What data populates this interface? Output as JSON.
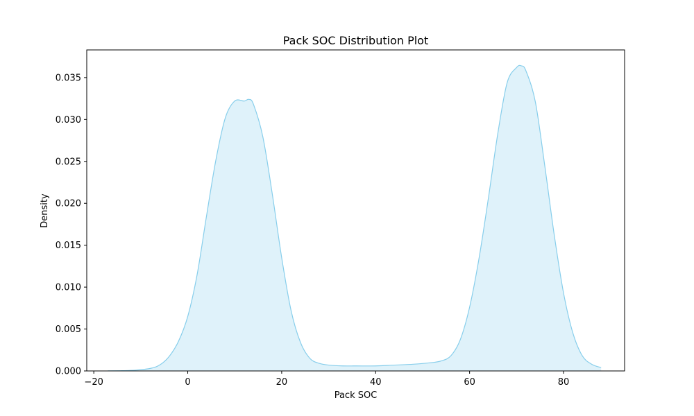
{
  "chart_data": {
    "type": "area",
    "title": "Pack SOC Distribution Plot",
    "xlabel": "Pack SOC",
    "ylabel": "Density",
    "xlim": [
      -21.5,
      93.0
    ],
    "ylim": [
      0.0,
      0.0383
    ],
    "x_ticks": [
      -20,
      0,
      20,
      40,
      60,
      80
    ],
    "y_ticks": [
      0.0,
      0.005,
      0.01,
      0.015,
      0.02,
      0.025,
      0.03,
      0.035
    ],
    "x_tick_labels": [
      "−20",
      "0",
      "20",
      "40",
      "60",
      "80"
    ],
    "y_tick_labels": [
      "0.000",
      "0.005",
      "0.010",
      "0.015",
      "0.020",
      "0.025",
      "0.030",
      "0.035"
    ],
    "grid": false,
    "series": [
      {
        "color": "#87ceeb",
        "fill_color": "#87ceeb",
        "fill_opacity": 0.27,
        "x": [
          -17,
          -14,
          -11,
          -8,
          -6,
          -4,
          -2,
          0,
          2,
          4,
          6,
          8,
          10,
          12,
          13,
          14,
          16,
          18,
          20,
          22,
          24,
          26,
          28,
          30,
          33,
          36,
          40,
          44,
          48,
          52,
          54,
          56,
          58,
          60,
          62,
          64,
          66,
          68,
          70,
          71,
          72,
          74,
          76,
          78,
          80,
          82,
          84,
          86,
          88
        ],
        "y": [
          1e-05,
          3e-05,
          0.0001,
          0.0003,
          0.0007,
          0.0017,
          0.0035,
          0.0065,
          0.0115,
          0.0185,
          0.0252,
          0.0302,
          0.0322,
          0.0322,
          0.0324,
          0.0318,
          0.0279,
          0.0211,
          0.0135,
          0.0072,
          0.0034,
          0.0015,
          0.0009,
          0.0007,
          0.0006,
          0.0006,
          0.0006,
          0.0007,
          0.0008,
          0.001,
          0.0012,
          0.0018,
          0.0037,
          0.0076,
          0.0134,
          0.0206,
          0.0283,
          0.0344,
          0.0362,
          0.0364,
          0.0358,
          0.0321,
          0.0245,
          0.0163,
          0.0093,
          0.0045,
          0.0018,
          0.0008,
          0.0004
        ]
      }
    ]
  }
}
